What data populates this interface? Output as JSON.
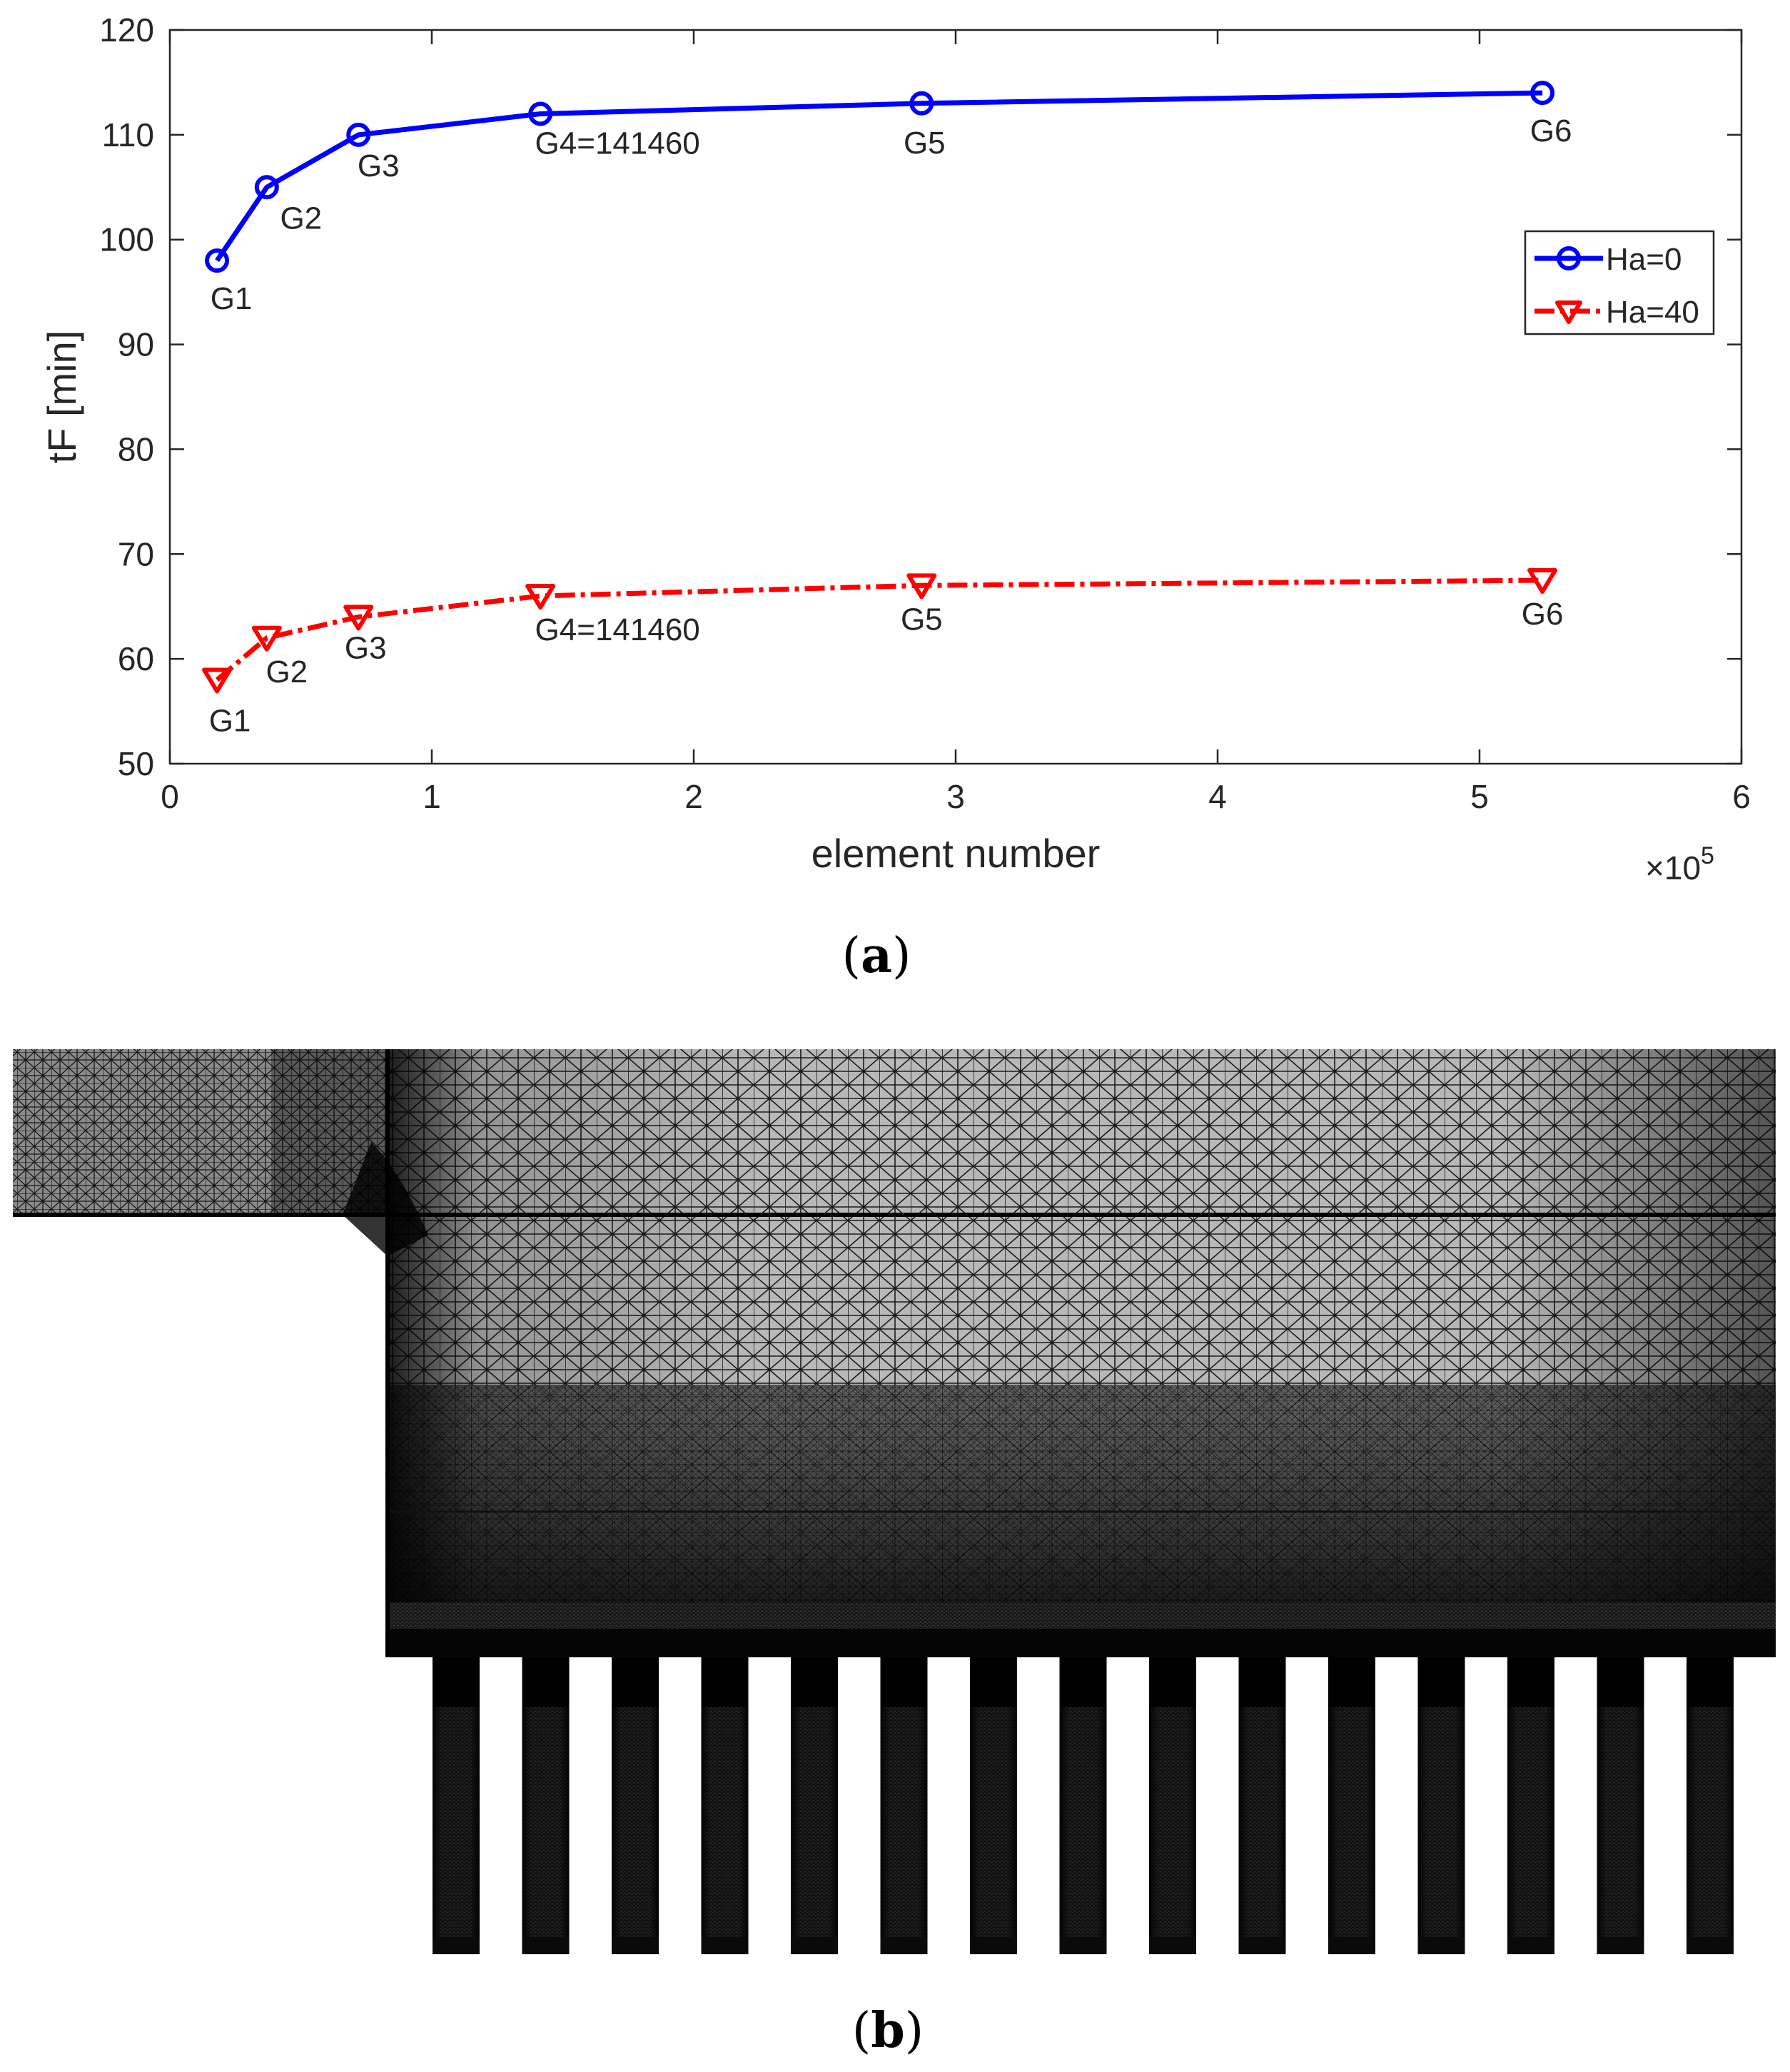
{
  "chart_data": {
    "type": "line",
    "panel_label": "a",
    "xlabel": "element number",
    "ylabel": "tF [min]",
    "x_exponent_label": "×10",
    "x_exponent_power": "5",
    "x_scale": 100000,
    "xlim": [
      0,
      600000
    ],
    "ylim": [
      50,
      120
    ],
    "x_ticks": [
      0,
      1,
      2,
      3,
      4,
      5,
      6
    ],
    "y_ticks": [
      50,
      60,
      70,
      80,
      90,
      100,
      110,
      120
    ],
    "legend_position": "right",
    "series": [
      {
        "name": "Ha=0",
        "color": "#0000ff",
        "line_style": "solid",
        "marker": "circle",
        "points": [
          {
            "x": 18000,
            "y": 98,
            "label": "G1"
          },
          {
            "x": 37000,
            "y": 105,
            "label": "G2"
          },
          {
            "x": 72000,
            "y": 110,
            "label": "G3"
          },
          {
            "x": 141460,
            "y": 112,
            "label": "G4=141460"
          },
          {
            "x": 287000,
            "y": 113,
            "label": "G5"
          },
          {
            "x": 524000,
            "y": 114,
            "label": "G6"
          }
        ]
      },
      {
        "name": "Ha=40",
        "color": "#ff0000",
        "line_style": "dash-dot",
        "marker": "triangle-down",
        "points": [
          {
            "x": 18000,
            "y": 58,
            "label": "G1"
          },
          {
            "x": 37000,
            "y": 62,
            "label": "G2"
          },
          {
            "x": 72000,
            "y": 64,
            "label": "G3"
          },
          {
            "x": 141460,
            "y": 66,
            "label": "G4=141460"
          },
          {
            "x": 287000,
            "y": 67,
            "label": "G5"
          },
          {
            "x": 524000,
            "y": 67.5,
            "label": "G6"
          }
        ]
      }
    ]
  },
  "mesh_panel": {
    "panel_label": "b",
    "description_icon": "mesh-image"
  }
}
